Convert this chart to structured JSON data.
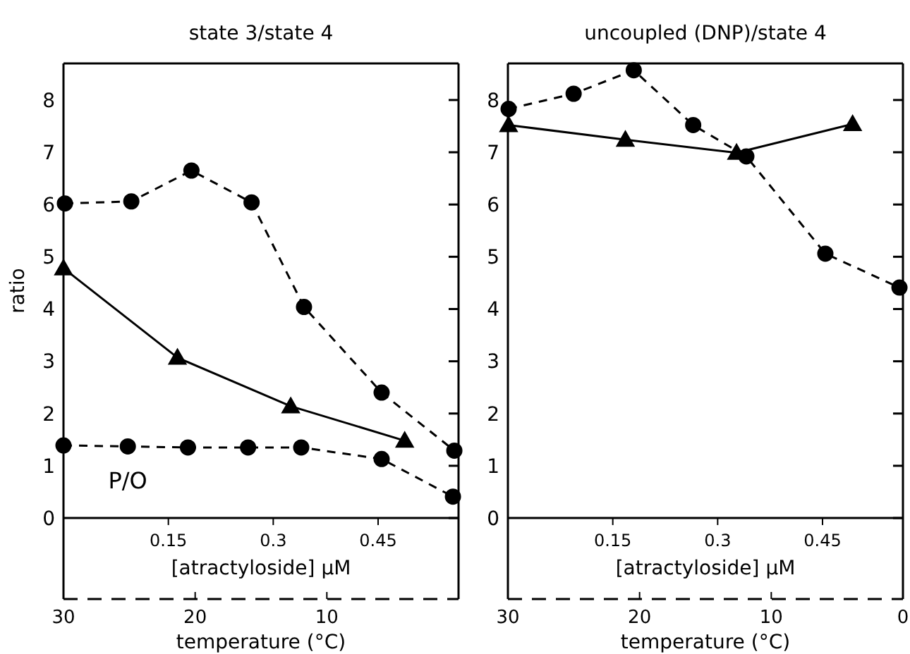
{
  "chart_data": [
    {
      "type": "line",
      "title": "state 3/state 4",
      "ylabel": "ratio",
      "xlabel": "[atractyloside] μM",
      "x2label": "temperature (°C)",
      "xlim": [
        0,
        0.565
      ],
      "xticks": [
        0.15,
        0.3,
        0.45
      ],
      "x2lim": [
        30,
        0
      ],
      "x2ticks": [
        30,
        20,
        10
      ],
      "ylim": [
        -1.55,
        8.7
      ],
      "yticks": [
        0,
        1,
        2,
        3,
        4,
        5,
        6,
        7,
        8
      ],
      "grid": false,
      "legend": false,
      "series": [
        {
          "color": "#000000",
          "marker": "circle",
          "line_style": "dashed",
          "x": [
            0.002,
            0.097,
            0.183,
            0.269,
            0.344,
            0.455,
            0.559
          ],
          "values": [
            6.02,
            6.06,
            6.65,
            6.04,
            4.04,
            2.4,
            1.29
          ]
        },
        {
          "color": "#000000",
          "marker": "triangle",
          "line_style": "solid",
          "x": [
            0,
            0.163,
            0.325,
            0.488
          ],
          "values": [
            4.78,
            3.07,
            2.14,
            1.48
          ]
        },
        {
          "name": "P/O",
          "color": "#000000",
          "marker": "circle",
          "line_style": "dashed",
          "x": [
            0,
            0.092,
            0.178,
            0.264,
            0.34,
            0.455,
            0.557
          ],
          "values": [
            1.39,
            1.37,
            1.35,
            1.35,
            1.35,
            1.13,
            0.41
          ]
        }
      ]
    },
    {
      "type": "line",
      "title": "uncoupled (DNP)/state 4",
      "xlabel": "[atractyloside] μM",
      "x2label": "temperature (°C)",
      "xlim": [
        0,
        0.565
      ],
      "xticks": [
        0.15,
        0.3,
        0.45
      ],
      "x2lim": [
        30,
        0
      ],
      "x2ticks": [
        30,
        20,
        10,
        0
      ],
      "ylim": [
        -1.55,
        8.7
      ],
      "yticks": [
        0,
        1,
        2,
        3,
        4,
        5,
        6,
        7,
        8
      ],
      "grid": false,
      "legend": false,
      "series": [
        {
          "color": "#000000",
          "marker": "circle",
          "line_style": "dashed",
          "x": [
            0.001,
            0.094,
            0.18,
            0.265,
            0.341,
            0.454,
            0.56
          ],
          "values": [
            7.83,
            8.12,
            8.57,
            7.52,
            6.92,
            5.06,
            4.41
          ]
        },
        {
          "color": "#000000",
          "marker": "triangle",
          "line_style": "solid",
          "x": [
            0.001,
            0.168,
            0.327,
            0.493
          ],
          "values": [
            7.52,
            7.24,
            6.99,
            7.54
          ]
        }
      ]
    }
  ]
}
